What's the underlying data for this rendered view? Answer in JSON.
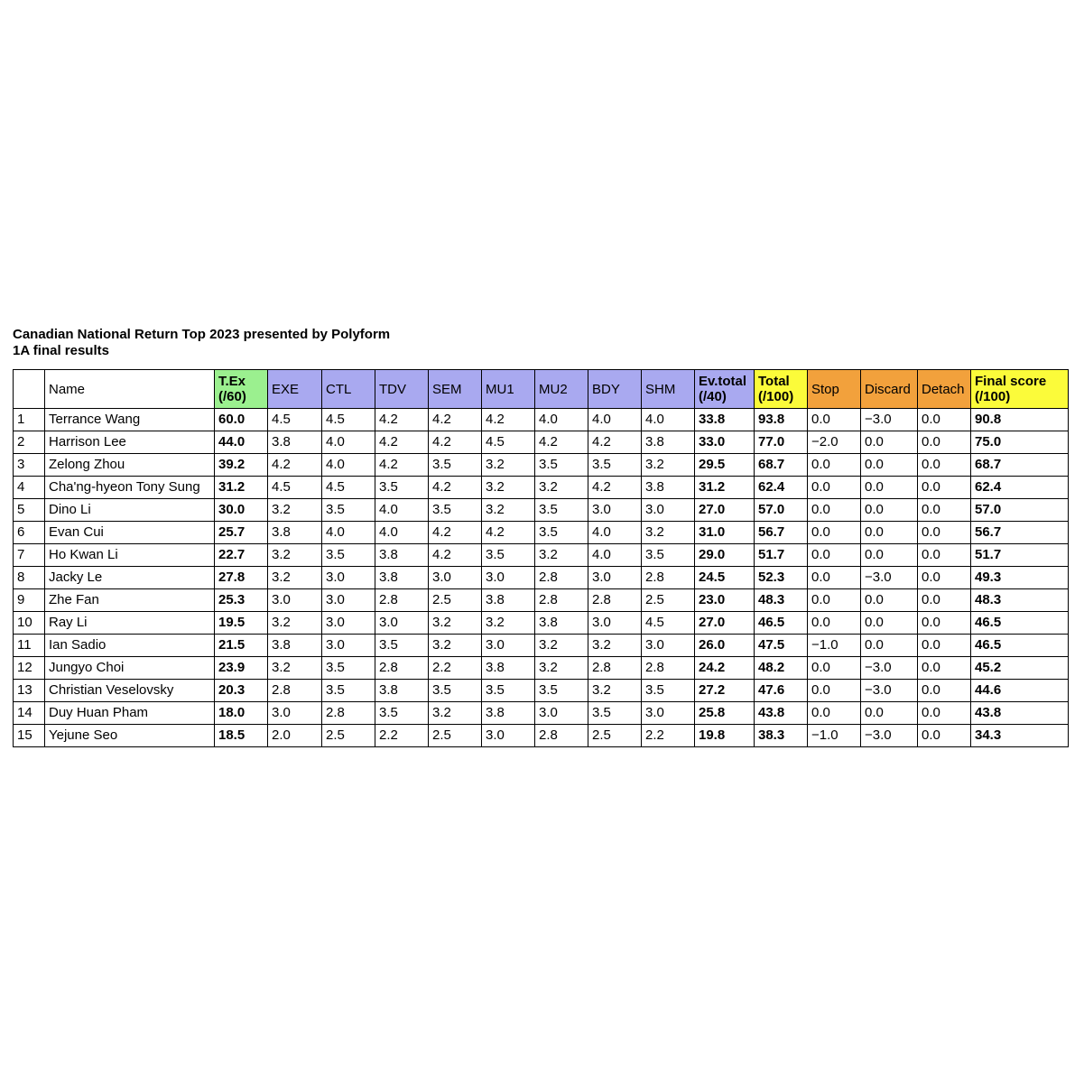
{
  "caption": {
    "title": "Canadian National Return Top 2023 presented by Polyform",
    "subtitle": "1A final results"
  },
  "columns": [
    {
      "key": "rank",
      "line1": "",
      "line2": "",
      "bg": "none",
      "bold": false
    },
    {
      "key": "name",
      "line1": "Name",
      "line2": "",
      "bg": "none",
      "bold": false
    },
    {
      "key": "tex",
      "line1": "T.Ex",
      "line2": "(/60)",
      "bg": "green",
      "bold": true
    },
    {
      "key": "exe",
      "line1": "EXE",
      "line2": "",
      "bg": "purple",
      "bold": false
    },
    {
      "key": "ctl",
      "line1": "CTL",
      "line2": "",
      "bg": "purple",
      "bold": false
    },
    {
      "key": "tdv",
      "line1": "TDV",
      "line2": "",
      "bg": "purple",
      "bold": false
    },
    {
      "key": "sem",
      "line1": "SEM",
      "line2": "",
      "bg": "purple",
      "bold": false
    },
    {
      "key": "mu1",
      "line1": "MU1",
      "line2": "",
      "bg": "purple",
      "bold": false
    },
    {
      "key": "mu2",
      "line1": "MU2",
      "line2": "",
      "bg": "purple",
      "bold": false
    },
    {
      "key": "bdy",
      "line1": "BDY",
      "line2": "",
      "bg": "purple",
      "bold": false
    },
    {
      "key": "shm",
      "line1": "SHM",
      "line2": "",
      "bg": "purple",
      "bold": false
    },
    {
      "key": "evtotal",
      "line1": "Ev.total",
      "line2": "(/40)",
      "bg": "purple",
      "bold": true
    },
    {
      "key": "total",
      "line1": "Total",
      "line2": "(/100)",
      "bg": "yellow",
      "bold": true
    },
    {
      "key": "stop",
      "line1": "Stop",
      "line2": "",
      "bg": "orange",
      "bold": false
    },
    {
      "key": "discard",
      "line1": "Discard",
      "line2": "",
      "bg": "orange",
      "bold": false
    },
    {
      "key": "detach",
      "line1": "Detach",
      "line2": "",
      "bg": "orange",
      "bold": false
    },
    {
      "key": "final",
      "line1": "Final score",
      "line2": "(/100)",
      "bg": "yellow",
      "bold": true
    }
  ],
  "bold_columns": [
    "tex",
    "evtotal",
    "total",
    "final"
  ],
  "colors": {
    "green": "#9bf08f",
    "purple": "#a9a9f0",
    "yellow": "#fbfb3a",
    "orange": "#f2a13c"
  },
  "rows": [
    [
      "1",
      "Terrance Wang",
      "60.0",
      "4.5",
      "4.5",
      "4.2",
      "4.2",
      "4.2",
      "4.0",
      "4.0",
      "4.0",
      "33.8",
      "93.8",
      "0.0",
      "−3.0",
      "0.0",
      "90.8"
    ],
    [
      "2",
      "Harrison Lee",
      "44.0",
      "3.8",
      "4.0",
      "4.2",
      "4.2",
      "4.5",
      "4.2",
      "4.2",
      "3.8",
      "33.0",
      "77.0",
      "−2.0",
      "0.0",
      "0.0",
      "75.0"
    ],
    [
      "3",
      "Zelong Zhou",
      "39.2",
      "4.2",
      "4.0",
      "4.2",
      "3.5",
      "3.2",
      "3.5",
      "3.5",
      "3.2",
      "29.5",
      "68.7",
      "0.0",
      "0.0",
      "0.0",
      "68.7"
    ],
    [
      "4",
      "Cha'ng-hyeon Tony Sung",
      "31.2",
      "4.5",
      "4.5",
      "3.5",
      "4.2",
      "3.2",
      "3.2",
      "4.2",
      "3.8",
      "31.2",
      "62.4",
      "0.0",
      "0.0",
      "0.0",
      "62.4"
    ],
    [
      "5",
      "Dino Li",
      "30.0",
      "3.2",
      "3.5",
      "4.0",
      "3.5",
      "3.2",
      "3.5",
      "3.0",
      "3.0",
      "27.0",
      "57.0",
      "0.0",
      "0.0",
      "0.0",
      "57.0"
    ],
    [
      "6",
      "Evan Cui",
      "25.7",
      "3.8",
      "4.0",
      "4.0",
      "4.2",
      "4.2",
      "3.5",
      "4.0",
      "3.2",
      "31.0",
      "56.7",
      "0.0",
      "0.0",
      "0.0",
      "56.7"
    ],
    [
      "7",
      "Ho Kwan Li",
      "22.7",
      "3.2",
      "3.5",
      "3.8",
      "4.2",
      "3.5",
      "3.2",
      "4.0",
      "3.5",
      "29.0",
      "51.7",
      "0.0",
      "0.0",
      "0.0",
      "51.7"
    ],
    [
      "8",
      "Jacky Le",
      "27.8",
      "3.2",
      "3.0",
      "3.8",
      "3.0",
      "3.0",
      "2.8",
      "3.0",
      "2.8",
      "24.5",
      "52.3",
      "0.0",
      "−3.0",
      "0.0",
      "49.3"
    ],
    [
      "9",
      "Zhe Fan",
      "25.3",
      "3.0",
      "3.0",
      "2.8",
      "2.5",
      "3.8",
      "2.8",
      "2.8",
      "2.5",
      "23.0",
      "48.3",
      "0.0",
      "0.0",
      "0.0",
      "48.3"
    ],
    [
      "10",
      "Ray Li",
      "19.5",
      "3.2",
      "3.0",
      "3.0",
      "3.2",
      "3.2",
      "3.8",
      "3.0",
      "4.5",
      "27.0",
      "46.5",
      "0.0",
      "0.0",
      "0.0",
      "46.5"
    ],
    [
      "11",
      "Ian Sadio",
      "21.5",
      "3.8",
      "3.0",
      "3.5",
      "3.2",
      "3.0",
      "3.2",
      "3.2",
      "3.0",
      "26.0",
      "47.5",
      "−1.0",
      "0.0",
      "0.0",
      "46.5"
    ],
    [
      "12",
      "Jungyo Choi",
      "23.9",
      "3.2",
      "3.5",
      "2.8",
      "2.2",
      "3.8",
      "3.2",
      "2.8",
      "2.8",
      "24.2",
      "48.2",
      "0.0",
      "−3.0",
      "0.0",
      "45.2"
    ],
    [
      "13",
      "Christian Veselovsky",
      "20.3",
      "2.8",
      "3.5",
      "3.8",
      "3.5",
      "3.5",
      "3.5",
      "3.2",
      "3.5",
      "27.2",
      "47.6",
      "0.0",
      "−3.0",
      "0.0",
      "44.6"
    ],
    [
      "14",
      "Duy Huan Pham",
      "18.0",
      "3.0",
      "2.8",
      "3.5",
      "3.2",
      "3.8",
      "3.0",
      "3.5",
      "3.0",
      "25.8",
      "43.8",
      "0.0",
      "0.0",
      "0.0",
      "43.8"
    ],
    [
      "15",
      "Yejune Seo",
      "18.5",
      "2.0",
      "2.5",
      "2.2",
      "2.5",
      "3.0",
      "2.8",
      "2.5",
      "2.2",
      "19.8",
      "38.3",
      "−1.0",
      "−3.0",
      "0.0",
      "34.3"
    ]
  ]
}
